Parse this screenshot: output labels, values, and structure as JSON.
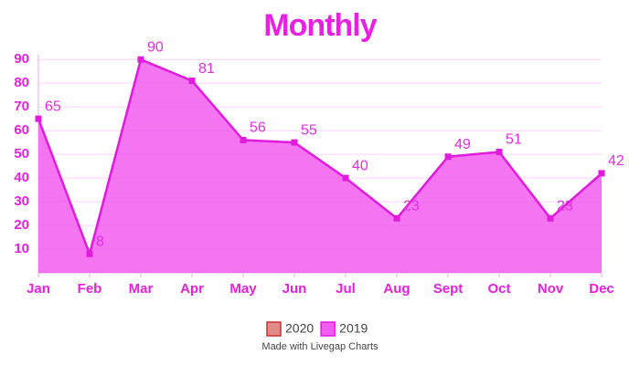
{
  "chart_data": {
    "type": "area",
    "title": "Monthly",
    "categories": [
      "Jan",
      "Feb",
      "Mar",
      "Apr",
      "May",
      "Jun",
      "Jul",
      "Aug",
      "Sept",
      "Oct",
      "Nov",
      "Dec"
    ],
    "series": [
      {
        "name": "2020",
        "color": "#e08a8a",
        "values": [
          null,
          null,
          null,
          null,
          null,
          null,
          null,
          null,
          null,
          null,
          null,
          null
        ]
      },
      {
        "name": "2019",
        "color": "#f25cf0",
        "values": [
          65,
          8,
          90,
          81,
          56,
          55,
          40,
          23,
          49,
          51,
          23,
          42
        ]
      }
    ],
    "ylim": [
      0,
      92
    ],
    "yticks": [
      10,
      20,
      30,
      40,
      50,
      60,
      70,
      80,
      90
    ],
    "grid": true,
    "footer": "Made with Livegap Charts"
  }
}
